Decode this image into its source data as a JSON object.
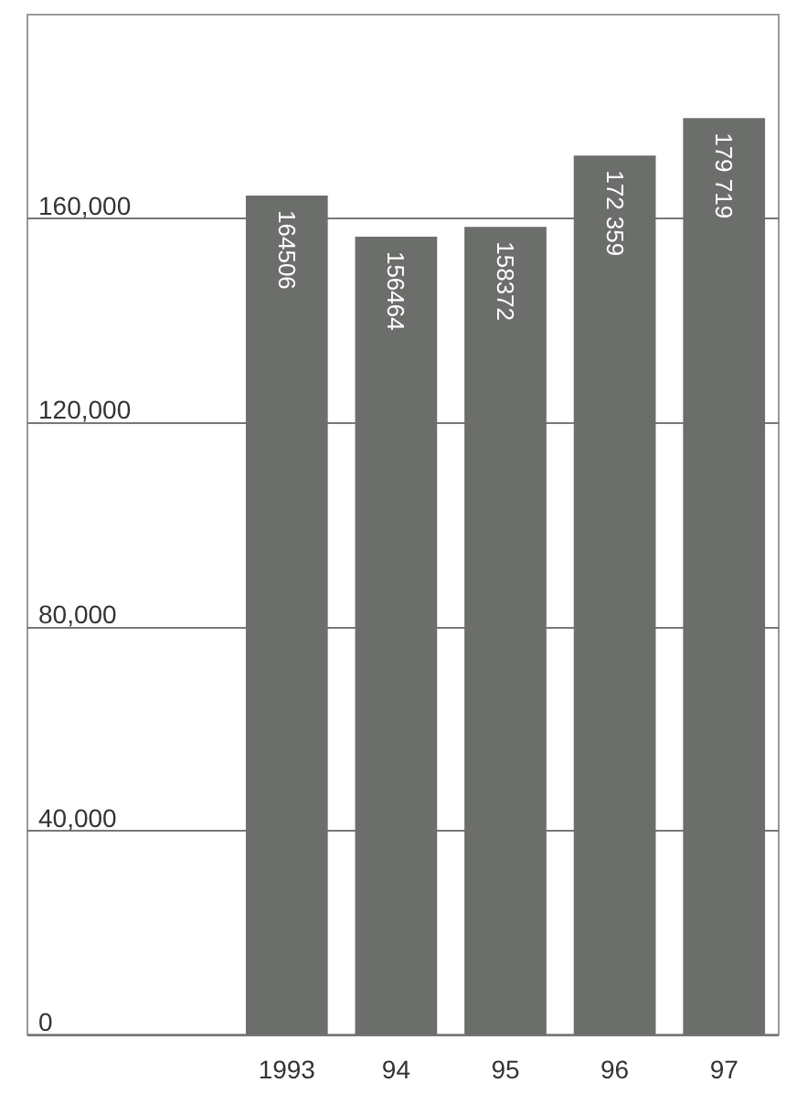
{
  "chart_data": {
    "type": "bar",
    "categories": [
      "1993",
      "94",
      "95",
      "96",
      "97"
    ],
    "values": [
      164506,
      156464,
      158372,
      172359,
      179719
    ],
    "value_labels": [
      "164506",
      "156464",
      "158372",
      "172 359",
      "179 719"
    ],
    "color": "#6b6e6a",
    "ylim": [
      0,
      200000
    ],
    "yticks": [
      0,
      {
        "value": 40000,
        "label": "40,000"
      },
      {
        "value": 80000,
        "label": "80,000"
      },
      {
        "value": 120000,
        "label": "120,000"
      },
      {
        "value": 160000,
        "label": "160,000"
      }
    ],
    "grid": "y"
  }
}
